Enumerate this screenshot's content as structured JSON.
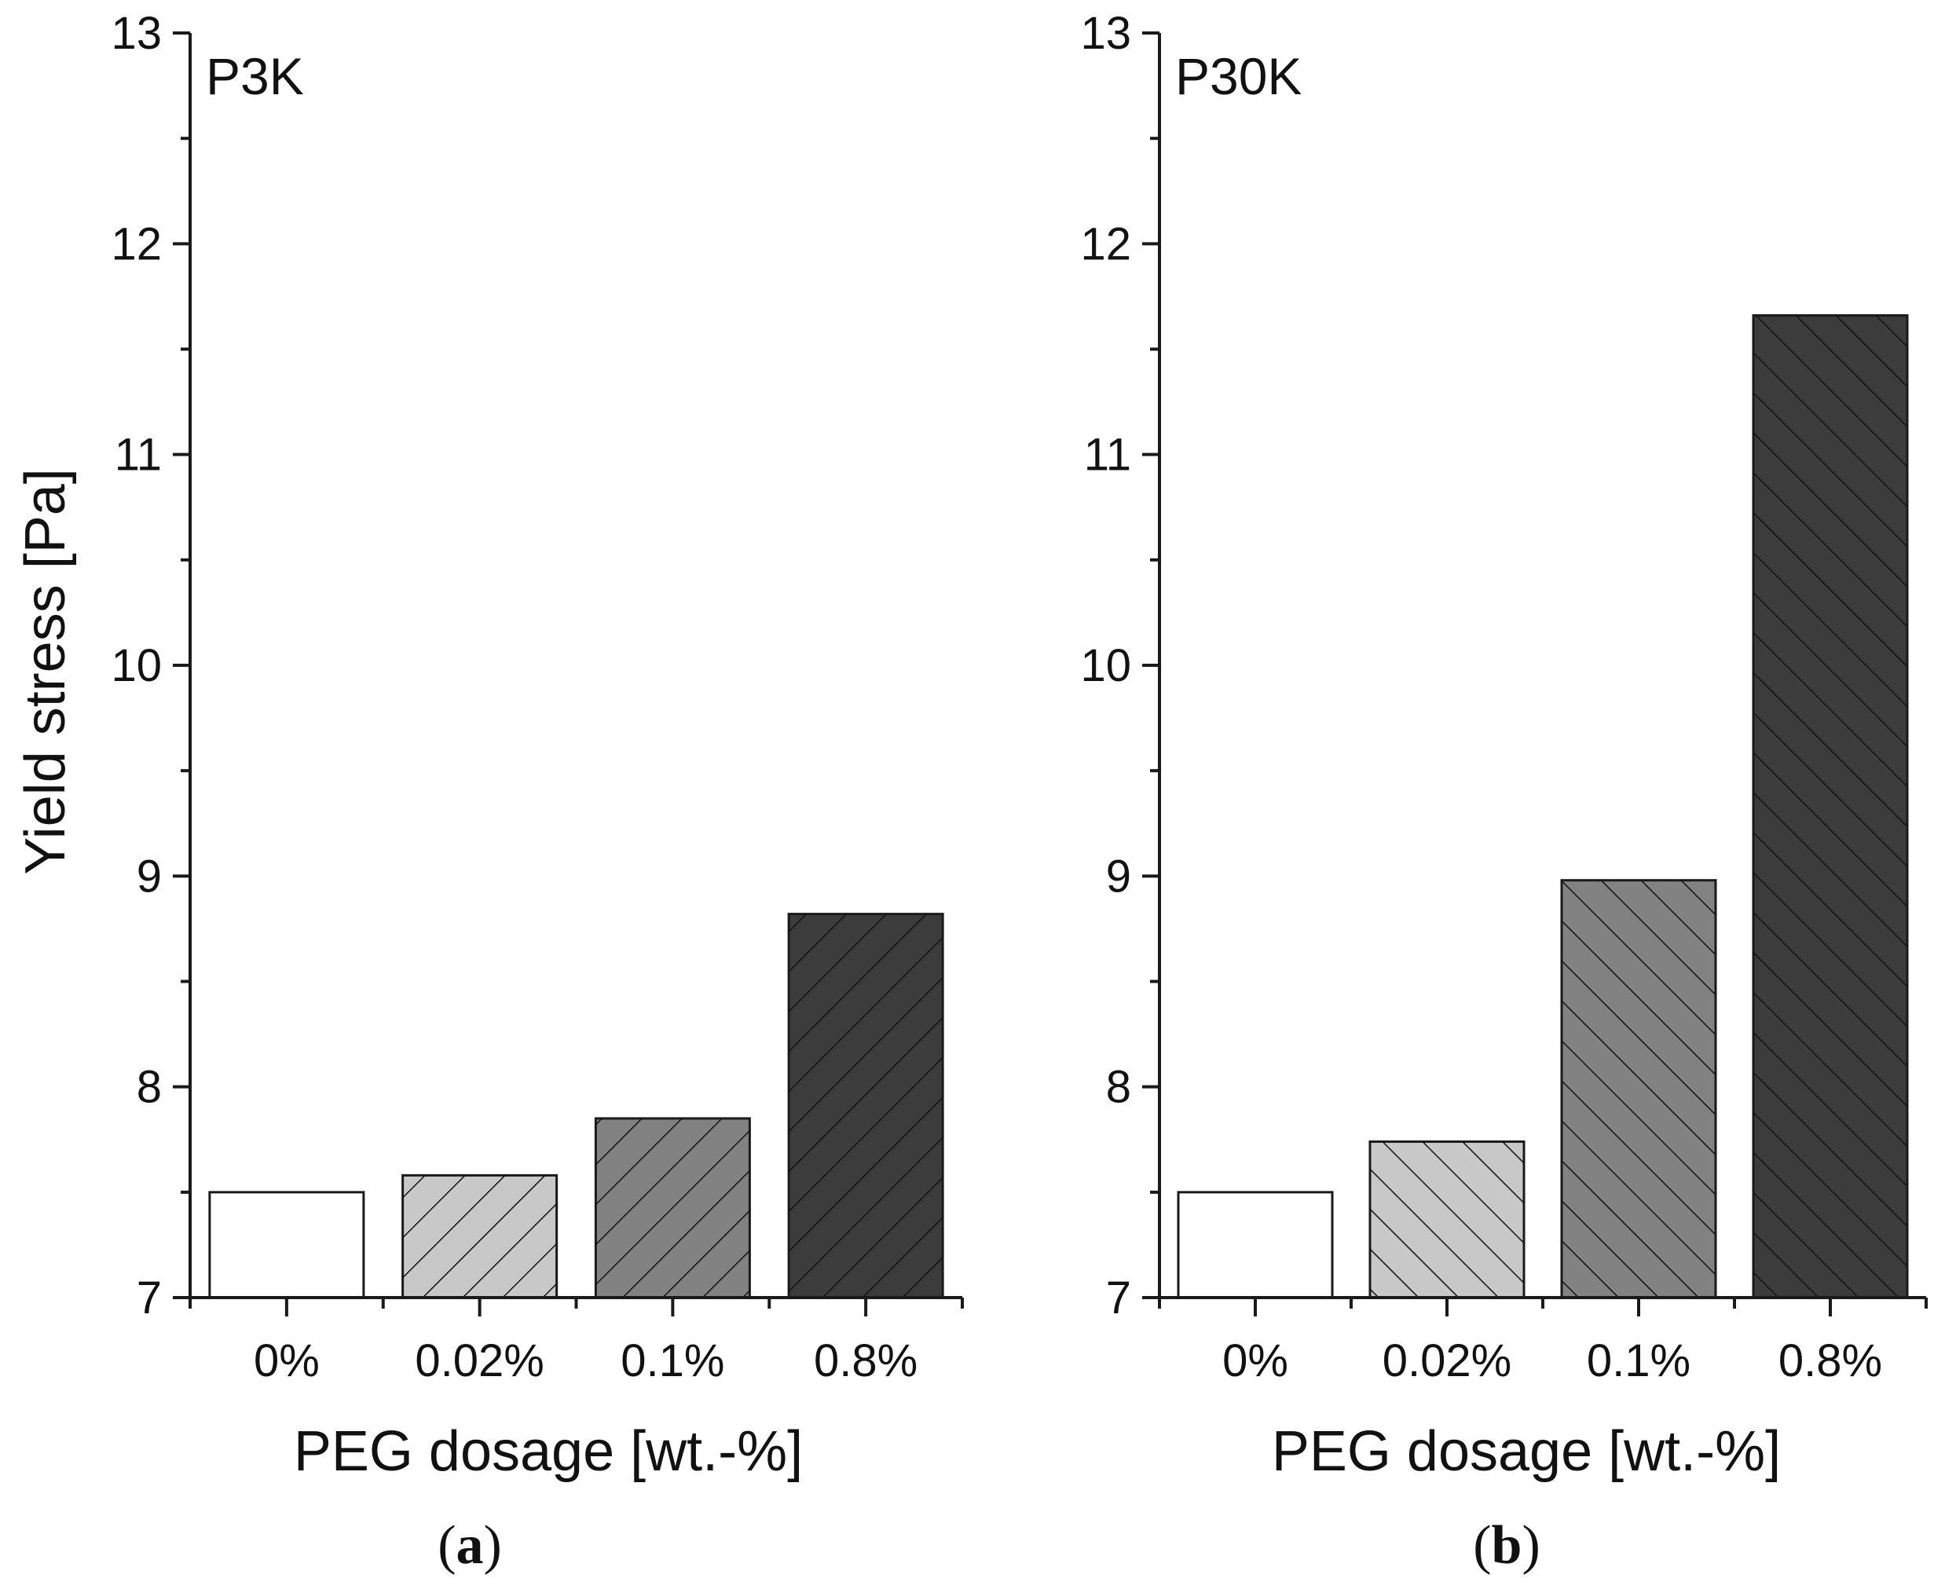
{
  "chart_data": [
    {
      "type": "bar",
      "panel_label": "P3K",
      "caption_letter": "a",
      "categories": [
        "0%",
        "0.02%",
        "0.1%",
        "0.8%"
      ],
      "values": [
        7.5,
        7.58,
        7.85,
        8.82
      ],
      "xlabel": "PEG dosage [wt.-%]",
      "ylabel": "Yield stress [Pa]",
      "ylim": [
        7,
        13
      ],
      "yticks": [
        "7",
        "8",
        "9",
        "10",
        "11",
        "12",
        "13"
      ],
      "hatch_direction": "forward",
      "bar_colors": [
        "#ffffff",
        "#c8c8c8",
        "#828282",
        "#3c3c3c"
      ]
    },
    {
      "type": "bar",
      "panel_label": "P30K",
      "caption_letter": "b",
      "categories": [
        "0%",
        "0.02%",
        "0.1%",
        "0.8%"
      ],
      "values": [
        7.5,
        7.74,
        8.98,
        11.66
      ],
      "xlabel": "PEG dosage [wt.-%]",
      "ylabel": "",
      "ylim": [
        7,
        13
      ],
      "yticks": [
        "7",
        "8",
        "9",
        "10",
        "11",
        "12",
        "13"
      ],
      "hatch_direction": "backward",
      "bar_colors": [
        "#ffffff",
        "#c8c8c8",
        "#828282",
        "#3c3c3c"
      ]
    }
  ]
}
